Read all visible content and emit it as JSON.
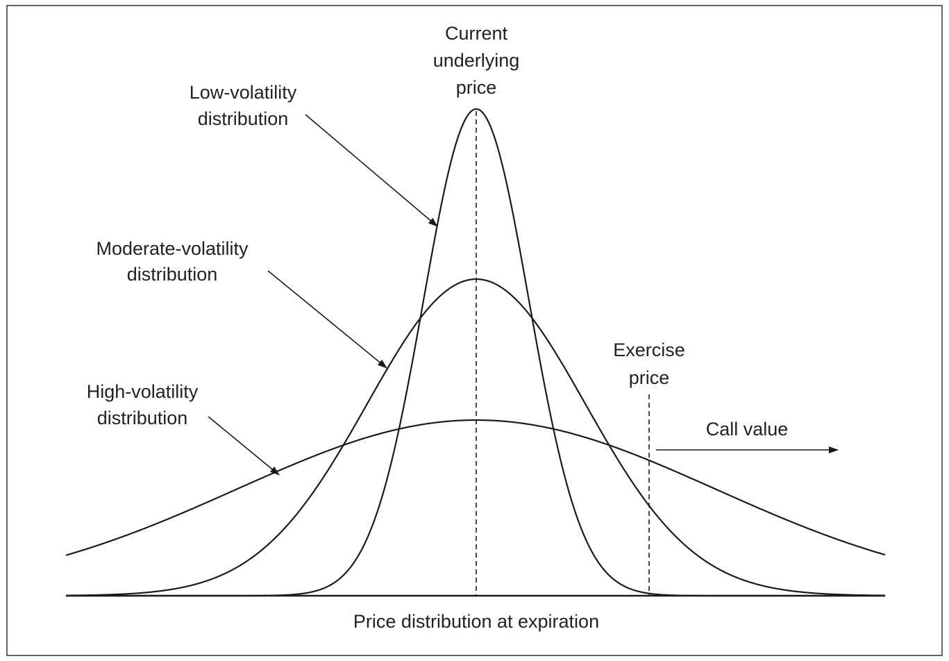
{
  "labels": {
    "current_price": [
      "Current",
      "underlying",
      "price"
    ],
    "low_volatility": [
      "Low-volatility",
      "distribution"
    ],
    "moderate_volatility": [
      "Moderate-volatility",
      "distribution"
    ],
    "high_volatility": [
      "High-volatility",
      "distribution"
    ],
    "exercise_price": [
      "Exercise",
      "price"
    ],
    "call_value": "Call value",
    "x_axis": "Price distribution at expiration"
  }
}
